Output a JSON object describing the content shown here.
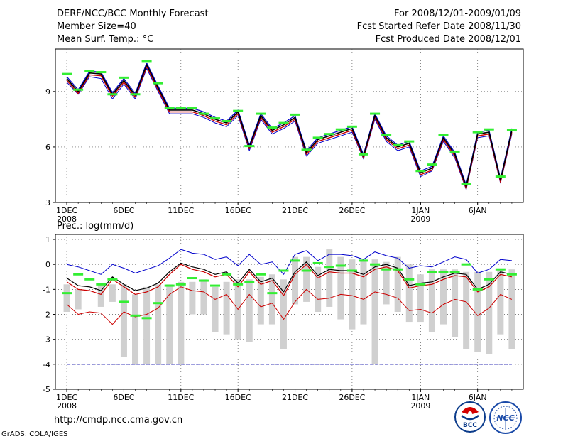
{
  "header": {
    "title": "DERF/NCC/BCC Monthly Forecast",
    "member_size": "Member Size=40",
    "variable": "Mean Surf. Temp.: °C",
    "period": "For 2008/12/01-2009/01/09",
    "start_date": "Fcst Started Refer Date 2008/11/30",
    "produced_date": "Fcst Produced Date 2008/12/01"
  },
  "footer": {
    "url": "http://cmdp.ncc.cma.gov.cn",
    "grads": "GrADS: COLA/IGES",
    "logo_bcc": "BCC",
    "logo_ncc": "NCC"
  },
  "x_labels": [
    {
      "day": 0,
      "label": "1DEC",
      "sub": "2008"
    },
    {
      "day": 5,
      "label": "6DEC",
      "sub": ""
    },
    {
      "day": 10,
      "label": "11DEC",
      "sub": ""
    },
    {
      "day": 15,
      "label": "16DEC",
      "sub": ""
    },
    {
      "day": 20,
      "label": "21DEC",
      "sub": ""
    },
    {
      "day": 25,
      "label": "26DEC",
      "sub": ""
    },
    {
      "day": 31,
      "label": "1JAN",
      "sub": "2009"
    },
    {
      "day": 36,
      "label": "6JAN",
      "sub": ""
    }
  ],
  "colors": {
    "mean": "#000000",
    "upper": "#0000cc",
    "lower": "#cc0000",
    "obs": "#33ee33",
    "spread": "#d0d0d0",
    "ref": "#0000aa"
  },
  "chart_data": [
    {
      "type": "line",
      "title": "Mean Surf. Temp.: °C",
      "xlim": [
        -1,
        40
      ],
      "ylim": [
        3,
        11.3
      ],
      "yticks": [
        3,
        6,
        9
      ],
      "series": [
        {
          "name": "ensemble-mean",
          "values": [
            9.7,
            9.0,
            10.0,
            9.95,
            8.85,
            9.6,
            8.8,
            10.45,
            9.2,
            8.0,
            8.0,
            8.0,
            7.8,
            7.5,
            7.3,
            7.9,
            6.0,
            7.7,
            6.9,
            7.2,
            7.6,
            5.7,
            6.4,
            6.6,
            6.8,
            7.0,
            5.5,
            7.7,
            6.5,
            6.0,
            6.2,
            4.6,
            4.85,
            6.5,
            5.6,
            3.85,
            6.7,
            6.8,
            4.2,
            6.9
          ]
        },
        {
          "name": "ensemble-upper",
          "values": [
            9.8,
            9.1,
            10.1,
            10.05,
            8.95,
            9.7,
            8.9,
            10.55,
            9.3,
            8.1,
            8.1,
            8.1,
            7.9,
            7.6,
            7.4,
            8.0,
            6.1,
            7.8,
            7.0,
            7.3,
            7.7,
            5.8,
            6.5,
            6.7,
            6.9,
            7.1,
            5.6,
            7.8,
            6.6,
            6.1,
            6.3,
            4.7,
            4.95,
            6.6,
            5.7,
            3.95,
            6.8,
            6.9,
            4.3,
            7.0
          ]
        },
        {
          "name": "ensemble-lower",
          "values": [
            9.6,
            8.9,
            9.9,
            9.85,
            8.75,
            9.5,
            8.7,
            10.35,
            9.1,
            7.9,
            7.9,
            7.9,
            7.7,
            7.4,
            7.2,
            7.8,
            5.9,
            7.6,
            6.8,
            7.1,
            7.5,
            5.6,
            6.3,
            6.5,
            6.7,
            6.9,
            5.4,
            7.6,
            6.4,
            5.9,
            6.1,
            4.5,
            4.75,
            6.4,
            5.5,
            3.75,
            6.6,
            6.7,
            4.1,
            6.8
          ]
        },
        {
          "name": "ensemble-min",
          "values": [
            9.5,
            8.85,
            9.8,
            9.7,
            8.6,
            9.4,
            8.6,
            10.25,
            9.0,
            7.8,
            7.8,
            7.8,
            7.6,
            7.3,
            7.1,
            7.7,
            5.8,
            7.5,
            6.7,
            7.0,
            7.4,
            5.5,
            6.2,
            6.4,
            6.6,
            6.8,
            5.35,
            7.5,
            6.3,
            5.8,
            6.0,
            4.4,
            4.7,
            6.3,
            5.4,
            3.7,
            6.5,
            6.6,
            4.05,
            6.7
          ]
        },
        {
          "name": "observed",
          "values": [
            9.95,
            9.1,
            10.1,
            10.05,
            8.85,
            9.75,
            8.85,
            10.65,
            9.45,
            8.1,
            8.1,
            8.1,
            7.8,
            7.55,
            7.4,
            7.95,
            6.05,
            7.8,
            7.05,
            7.3,
            7.75,
            5.85,
            6.5,
            6.7,
            6.95,
            7.1,
            5.6,
            7.8,
            6.65,
            6.1,
            6.3,
            4.7,
            5.05,
            6.65,
            5.75,
            4.0,
            6.8,
            6.95,
            4.4,
            6.9
          ]
        }
      ]
    },
    {
      "type": "line",
      "title": "Prec.: log(mm/d)",
      "xlim": [
        -1,
        40
      ],
      "ylim": [
        -5,
        1.2
      ],
      "yticks": [
        -5,
        -4,
        -3,
        -2,
        -1,
        0,
        1
      ],
      "reference_line": -4,
      "series": [
        {
          "name": "ensemble-mean",
          "values": [
            -0.7,
            -1.0,
            -1.05,
            -1.2,
            -0.6,
            -0.9,
            -1.2,
            -1.1,
            -0.9,
            -0.4,
            0.0,
            -0.2,
            -0.3,
            -0.5,
            -0.4,
            -0.9,
            -0.3,
            -0.8,
            -0.65,
            -1.25,
            -0.4,
            0.0,
            -0.55,
            -0.3,
            -0.35,
            -0.35,
            -0.5,
            -0.2,
            -0.1,
            -0.25,
            -0.95,
            -0.85,
            -0.8,
            -0.6,
            -0.45,
            -0.5,
            -1.1,
            -0.9,
            -0.4,
            -0.5
          ]
        },
        {
          "name": "ensemble-upper",
          "values": [
            0.0,
            -0.1,
            -0.25,
            -0.4,
            0.0,
            -0.15,
            -0.35,
            -0.2,
            -0.05,
            0.25,
            0.6,
            0.45,
            0.4,
            0.2,
            0.3,
            -0.05,
            0.4,
            0.0,
            0.1,
            -0.4,
            0.4,
            0.55,
            0.15,
            0.4,
            0.4,
            0.35,
            0.2,
            0.5,
            0.35,
            0.25,
            -0.15,
            -0.05,
            -0.1,
            0.1,
            0.3,
            0.2,
            -0.35,
            -0.2,
            0.2,
            0.15
          ]
        },
        {
          "name": "ensemble-lower",
          "values": [
            -1.6,
            -2.0,
            -1.9,
            -1.95,
            -2.4,
            -1.9,
            -2.1,
            -2.0,
            -1.75,
            -1.2,
            -0.9,
            -1.05,
            -1.1,
            -1.4,
            -1.2,
            -1.8,
            -1.2,
            -1.7,
            -1.55,
            -2.2,
            -1.5,
            -1.0,
            -1.4,
            -1.35,
            -1.2,
            -1.25,
            -1.4,
            -1.1,
            -1.2,
            -1.35,
            -1.85,
            -1.8,
            -1.95,
            -1.6,
            -1.4,
            -1.5,
            -2.05,
            -1.75,
            -1.2,
            -1.4
          ]
        },
        {
          "name": "ensemble-mean-dark",
          "values": [
            -0.55,
            -0.85,
            -0.9,
            -1.05,
            -0.5,
            -0.8,
            -1.05,
            -0.95,
            -0.75,
            -0.3,
            0.05,
            -0.1,
            -0.2,
            -0.4,
            -0.3,
            -0.75,
            -0.2,
            -0.7,
            -0.55,
            -1.1,
            -0.3,
            0.1,
            -0.45,
            -0.2,
            -0.25,
            -0.25,
            -0.4,
            -0.1,
            0.0,
            -0.15,
            -0.85,
            -0.75,
            -0.7,
            -0.5,
            -0.35,
            -0.4,
            -1.0,
            -0.8,
            -0.3,
            -0.4
          ]
        },
        {
          "name": "observed",
          "values": [
            -1.15,
            -0.4,
            -0.6,
            -0.8,
            -0.6,
            -1.5,
            -2.05,
            -2.15,
            -1.55,
            -0.85,
            -0.8,
            -0.55,
            -0.65,
            -0.85,
            -0.4,
            -0.8,
            -0.7,
            -0.4,
            -1.15,
            -0.25,
            0.15,
            -0.25,
            0.05,
            -0.1,
            -0.05,
            -0.25,
            0.15,
            0.0,
            -0.2,
            -0.2,
            -0.6,
            -0.8,
            -0.3,
            -0.3,
            -0.3,
            0.0,
            -1.0,
            -0.6,
            -0.2,
            -0.4
          ]
        },
        {
          "name": "spread-top",
          "values": [
            -0.8,
            -1.0,
            -0.9,
            -0.8,
            -0.8,
            -0.8,
            -1.2,
            -0.9,
            -0.8,
            -0.8,
            -0.7,
            -0.7,
            -0.6,
            -0.9,
            -0.7,
            -0.6,
            -0.6,
            -0.5,
            -0.4,
            -0.6,
            0.3,
            0.3,
            -0.1,
            0.6,
            0.3,
            0.2,
            0.2,
            0.2,
            0.1,
            0.3,
            0.0,
            -0.4,
            -0.2,
            -0.2,
            -0.2,
            -0.3,
            -0.3,
            -0.3,
            -0.2,
            -0.2
          ]
        },
        {
          "name": "spread-bottom",
          "values": [
            -1.9,
            -1.8,
            -0.9,
            -1.7,
            -1.5,
            -3.7,
            -4.0,
            -4.0,
            -4.0,
            -4.0,
            -4.0,
            -2.0,
            -2.0,
            -2.7,
            -2.8,
            -3.0,
            -3.1,
            -2.4,
            -2.4,
            -3.4,
            -1.6,
            -1.5,
            -1.9,
            -1.7,
            -2.2,
            -2.6,
            -2.4,
            -4.0,
            -1.6,
            -1.9,
            -2.3,
            -2.3,
            -2.7,
            -2.4,
            -2.9,
            -3.4,
            -3.5,
            -3.6,
            -2.8,
            -3.4
          ]
        }
      ]
    }
  ]
}
